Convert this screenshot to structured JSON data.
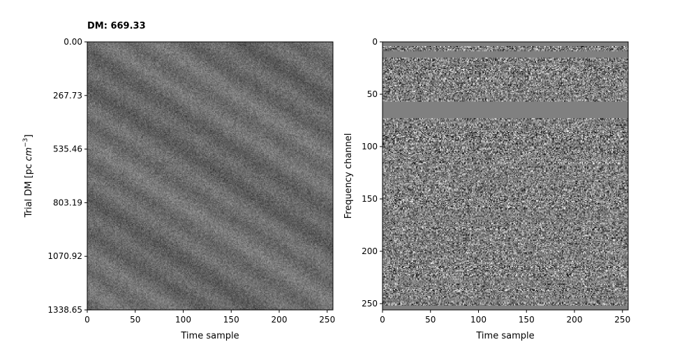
{
  "title": "DM: 669.33",
  "chart_data": [
    {
      "type": "heatmap",
      "colormap": "gray",
      "title": "DM: 669.33",
      "xlabel": "Time sample",
      "ylabel_main": "Trial DM [pc ",
      "ylabel_unit": "cm",
      "ylabel_exp": "−3",
      "ylabel_close": "]",
      "xlim": [
        0,
        256
      ],
      "ylim": [
        1338.65,
        0.0
      ],
      "x_ticks": [
        0,
        50,
        100,
        150,
        200,
        250
      ],
      "y_ticks": [
        0.0,
        267.73,
        535.46,
        803.19,
        1070.92,
        1338.65
      ],
      "y_tick_labels": [
        "0.00",
        "267.73",
        "535.46",
        "803.19",
        "1070.92",
        "1338.65"
      ],
      "n_time": 256,
      "n_dm": 256,
      "sweep_slope": 0.6,
      "noise_level": 0.32,
      "base_gray": 0.42
    },
    {
      "type": "heatmap",
      "colormap": "gray",
      "xlabel": "Time sample",
      "ylabel": "Frequency channel",
      "xlim": [
        0,
        256
      ],
      "ylim": [
        256,
        0
      ],
      "x_ticks": [
        0,
        50,
        100,
        150,
        200,
        250
      ],
      "y_ticks": [
        0,
        50,
        100,
        150,
        200,
        250
      ],
      "n_time": 256,
      "n_channels": 256,
      "masked_channel_ranges": [
        [
          0,
          4
        ],
        [
          9,
          15
        ],
        [
          57,
          73
        ],
        [
          252,
          256
        ]
      ],
      "masked_gray": 0.5,
      "noise_level": 0.6
    }
  ]
}
